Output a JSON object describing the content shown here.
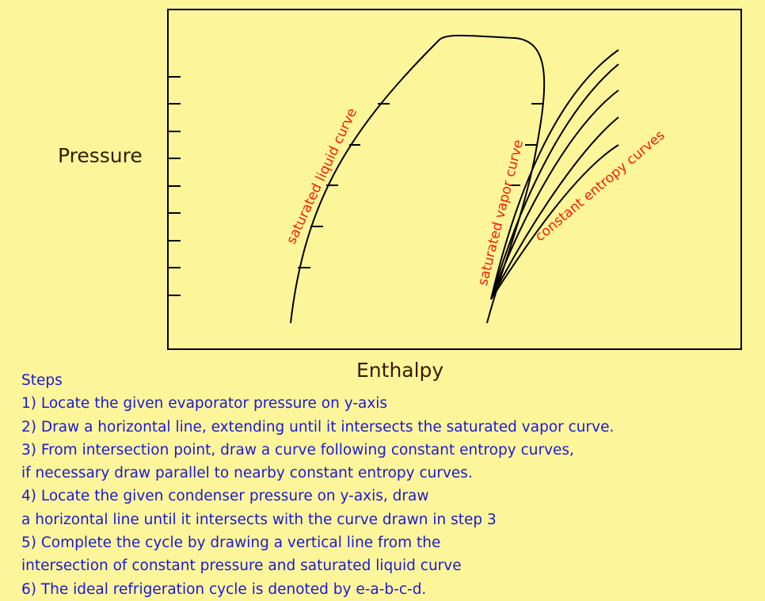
{
  "diagram": {
    "y_axis_label": "Pressure",
    "x_axis_label": "Enthalpy",
    "saturated_liquid_label": "saturated liquid curve",
    "saturated_vapor_label": "saturated vapor curve",
    "constant_entropy_label": "constant entropy curves",
    "line_color": "#000000",
    "annotation_color": "#ff1a00",
    "axis_text_color": "#3a1a00",
    "background_color": "#fdf59a"
  },
  "steps": {
    "title": "Steps",
    "text_color": "#1a1ad6",
    "lines": [
      "1) Locate the given evaporator pressure on y-axis",
      "2) Draw a horizontal line, extending until it intersects the saturated vapor curve.",
      "3) From intersection point, draw a curve following constant entropy curves,",
      "if necessary draw parallel to nearby constant entropy curves.",
      "4) Locate the given condenser pressure on y-axis, draw",
      "a horizontal line until it intersects with the curve drawn in step 3",
      "5) Complete the cycle by drawing a vertical line from the",
      "intersection of constant pressure and saturated liquid curve",
      "6) The ideal refrigeration cycle is denoted by e-a-b-c-d."
    ]
  }
}
